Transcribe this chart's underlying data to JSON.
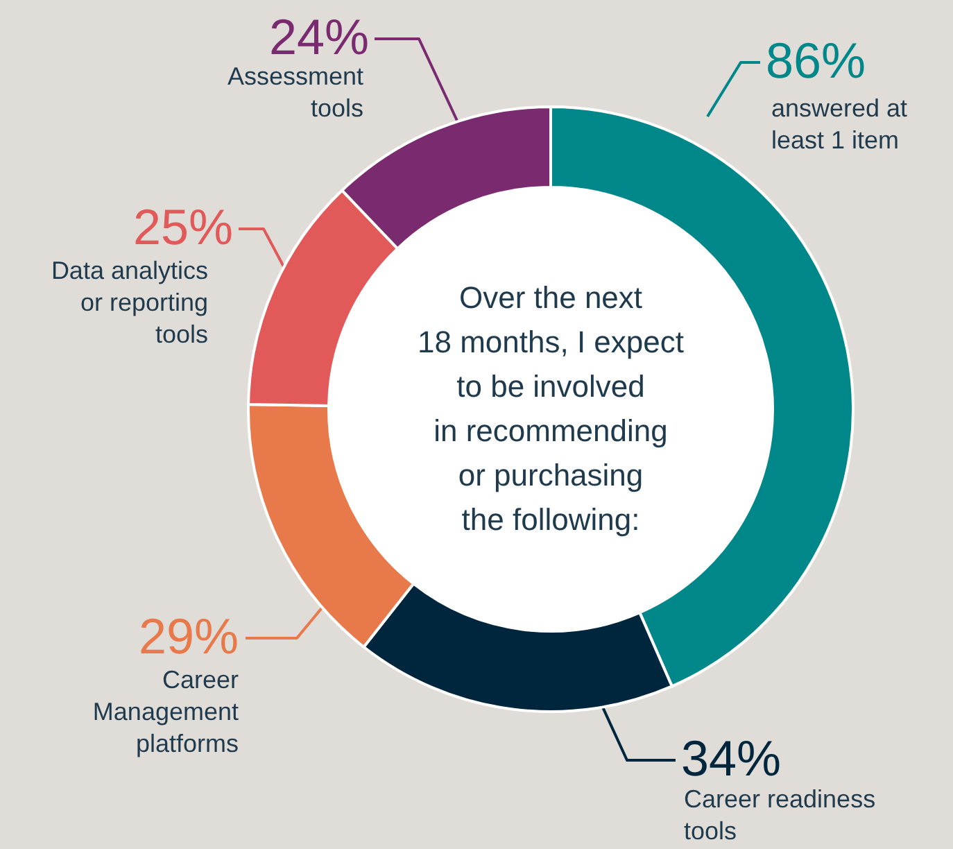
{
  "chart_data": {
    "type": "donut",
    "title": [
      "Over the next",
      "18 months, I expect",
      "to be involved",
      "in recommending",
      "or purchasing",
      "the following:"
    ],
    "categories": [
      "answered at least 1 item",
      "Career readiness tools",
      "Career Management platforms",
      "Data analytics or reporting tools",
      "Assessment tools"
    ],
    "values": [
      86,
      34,
      29,
      25,
      24
    ],
    "value_labels": [
      "86%",
      "34%",
      "29%",
      "25%",
      "24%"
    ],
    "colors": [
      "#00878a",
      "#00263d",
      "#e8794b",
      "#e2595a",
      "#7a2b70"
    ]
  }
}
